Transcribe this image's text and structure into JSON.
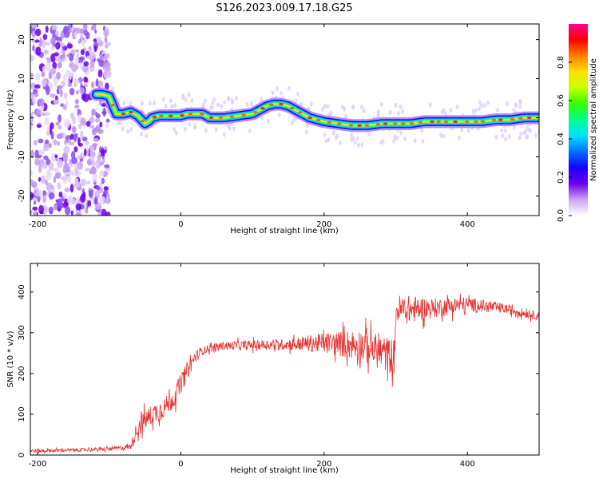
{
  "title": "S126.2023.009.17.18.G25",
  "colors": {
    "snr_line": "#e53030",
    "axis": "#000000"
  },
  "chart_data": [
    {
      "type": "heatmap",
      "xlabel": "Height of straight line (km)",
      "ylabel": "Frequency (Hz)",
      "xlim": [
        -210,
        500
      ],
      "ylim": [
        -25,
        24
      ],
      "xticks": [
        -200,
        0,
        200,
        400
      ],
      "yticks": [
        -20,
        -10,
        0,
        10,
        20
      ],
      "colorbar": {
        "label": "Normalized spectral amplitude",
        "range": [
          0,
          1
        ],
        "ticks": [
          "0.0",
          "0.2",
          "0.4",
          "0.6",
          "0.8"
        ],
        "colormap": [
          "#ffffff",
          "#c9a4f5",
          "#6a00e8",
          "#1a00ff",
          "#0070ff",
          "#00e0ff",
          "#00ff90",
          "#30ff00",
          "#c8ff00",
          "#ffe000",
          "#ff8000",
          "#ff0000",
          "#ff0090"
        ]
      },
      "ridge": {
        "x": [
          -118,
          -110,
          -100,
          -90,
          -80,
          -70,
          -60,
          -50,
          -45,
          -40,
          -30,
          -20,
          -10,
          0,
          10,
          20,
          30,
          40,
          60,
          80,
          100,
          110,
          120,
          130,
          140,
          150,
          160,
          170,
          180,
          190,
          200,
          220,
          240,
          260,
          280,
          300,
          320,
          340,
          360,
          380,
          400,
          420,
          440,
          460,
          480,
          500
        ],
        "y": [
          6,
          6,
          5.5,
          1,
          1,
          1.5,
          0.5,
          -1.5,
          -1,
          0,
          0.5,
          0.5,
          0.5,
          0.5,
          1,
          1,
          1,
          0,
          0,
          0.5,
          1,
          2,
          3,
          3.5,
          3.5,
          3,
          2,
          1,
          0,
          -0.5,
          -1,
          -1.5,
          -2,
          -2,
          -1.5,
          -1.5,
          -1.5,
          -1,
          -1,
          -1,
          -1,
          -1,
          -0.5,
          -0.5,
          0,
          0
        ]
      },
      "noise_region_x": [
        -210,
        -100
      ]
    },
    {
      "type": "line",
      "xlabel": "Height of straight line (km)",
      "ylabel": "SNR (10 * v/v)",
      "xlim": [
        -210,
        500
      ],
      "ylim": [
        0,
        470
      ],
      "xticks": [
        -200,
        0,
        200,
        400
      ],
      "yticks": [
        0,
        100,
        200,
        300,
        400
      ],
      "series": [
        {
          "color": "#e53030",
          "x": [
            -210,
            -150,
            -100,
            -70,
            -60,
            -40,
            -20,
            -10,
            0,
            10,
            20,
            30,
            40,
            50,
            60,
            100,
            150,
            200,
            250,
            299,
            300,
            350,
            400,
            450,
            500
          ],
          "y": [
            10,
            12,
            15,
            20,
            70,
            100,
            120,
            140,
            175,
            210,
            240,
            255,
            262,
            265,
            268,
            270,
            272,
            275,
            270,
            240,
            355,
            360,
            370,
            360,
            340
          ],
          "spread": [
            4,
            4,
            5,
            6,
            25,
            25,
            25,
            25,
            25,
            22,
            15,
            10,
            10,
            10,
            10,
            12,
            14,
            25,
            40,
            45,
            40,
            25,
            18,
            12,
            10
          ]
        }
      ]
    }
  ]
}
